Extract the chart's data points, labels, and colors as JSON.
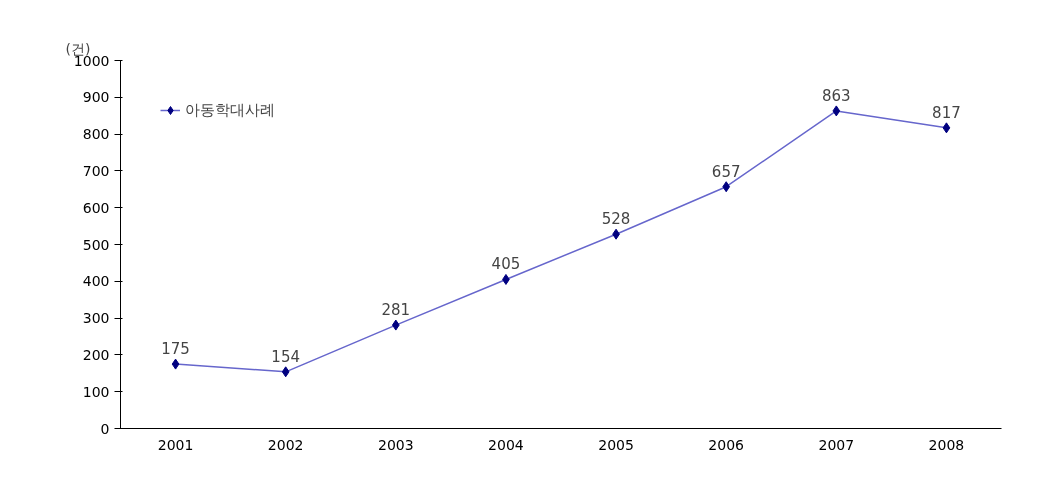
{
  "chart_data": {
    "type": "line",
    "ylabel": "(건)",
    "categories": [
      "2001",
      "2002",
      "2003",
      "2004",
      "2005",
      "2006",
      "2007",
      "2008"
    ],
    "series": [
      {
        "name": "아동학대사례",
        "color": "#000080",
        "values": [
          175,
          154,
          281,
          405,
          528,
          657,
          863,
          817
        ]
      }
    ],
    "ylim": [
      0,
      1000
    ],
    "yticks": [
      0,
      100,
      200,
      300,
      400,
      500,
      600,
      700,
      800,
      900,
      1000
    ],
    "grid": false,
    "legend": "top left",
    "marker": "diamond",
    "line_style": "solid",
    "data_labels": true
  }
}
